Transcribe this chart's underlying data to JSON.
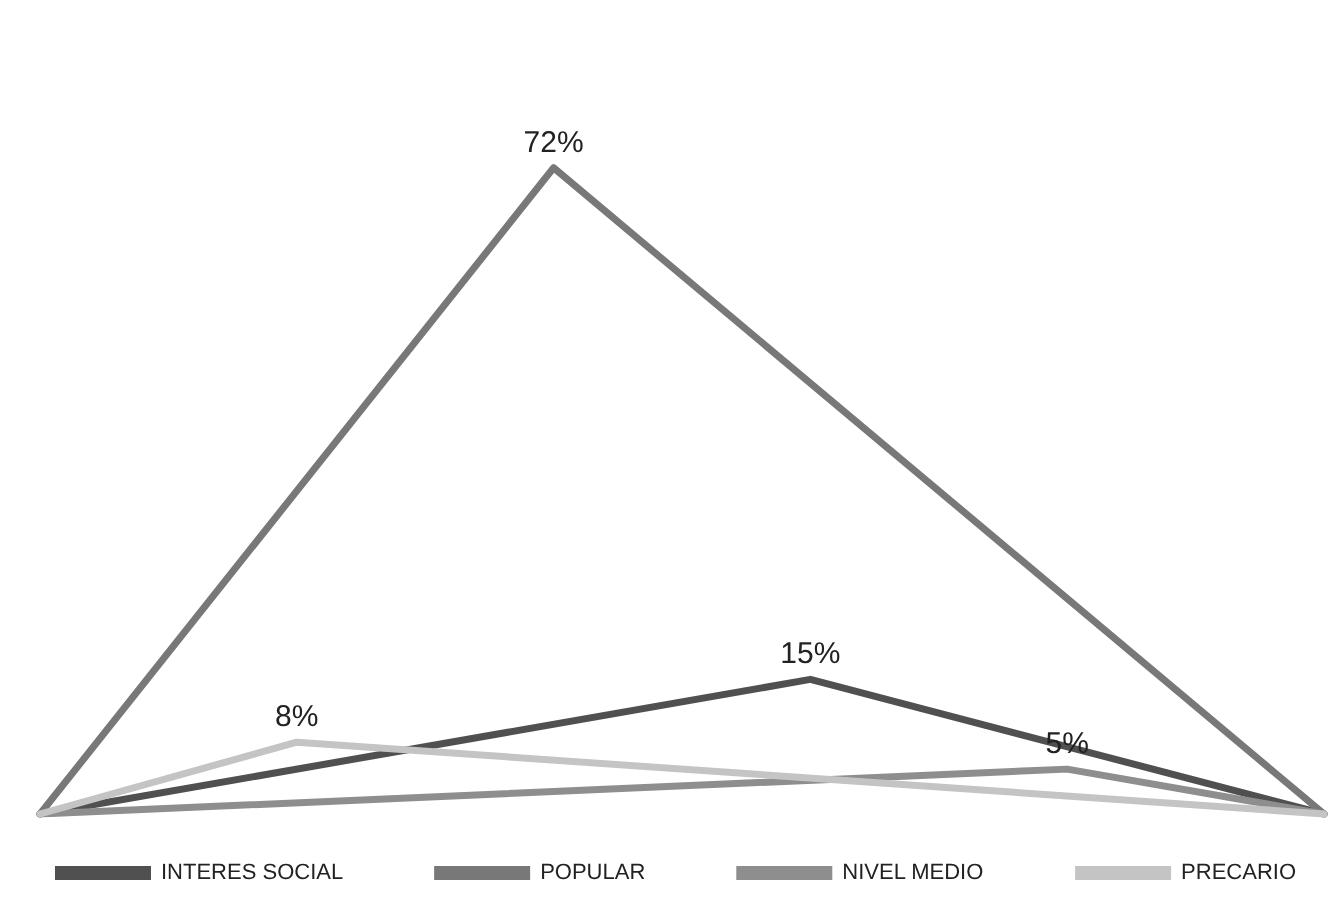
{
  "chart_data": {
    "type": "line",
    "categories": [
      null,
      null,
      null,
      null,
      null,
      null
    ],
    "series": [
      {
        "name": "INTERES SOCIAL",
        "color": "#505050",
        "values": [
          0,
          null,
          null,
          15,
          null,
          0
        ],
        "value_labels": [
          null,
          null,
          null,
          "15%",
          null,
          null
        ]
      },
      {
        "name": "POPULAR",
        "color": "#787878",
        "values": [
          0,
          null,
          72,
          null,
          null,
          0
        ],
        "value_labels": [
          null,
          null,
          "72%",
          null,
          null,
          null
        ]
      },
      {
        "name": "NIVEL MEDIO",
        "color": "#8e8e8e",
        "values": [
          0,
          null,
          null,
          null,
          5,
          0
        ],
        "value_labels": [
          null,
          null,
          null,
          null,
          "5%",
          null
        ]
      },
      {
        "name": "PRECARIO",
        "color": "#c4c4c4",
        "values": [
          0,
          8,
          null,
          null,
          null,
          0
        ],
        "value_labels": [
          null,
          "8%",
          null,
          null,
          null,
          null
        ]
      }
    ],
    "relative": false,
    "legend": "bottom",
    "marker": "none",
    "grid": false,
    "tick_labels": false
  }
}
